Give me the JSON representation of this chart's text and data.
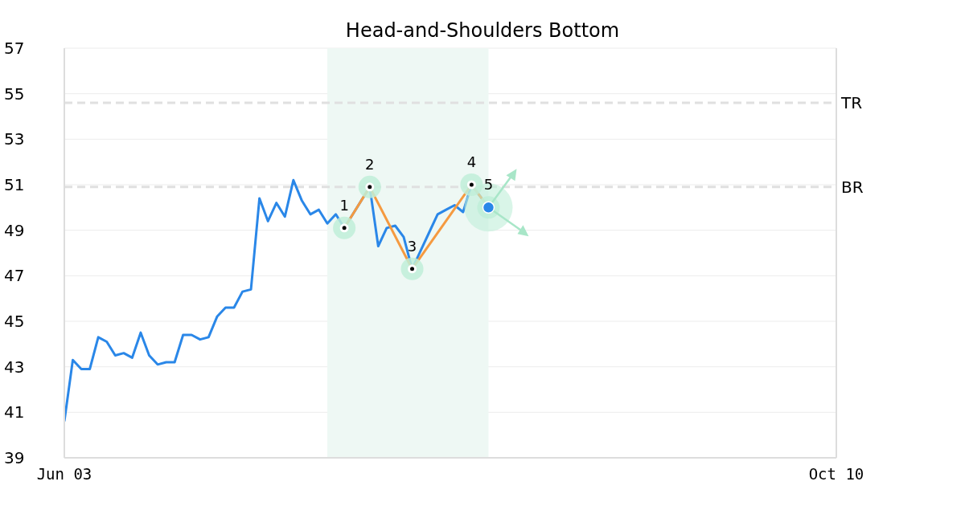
{
  "chart_data": {
    "type": "line",
    "title": "Head-and-Shoulders Bottom",
    "categories": [
      "Jun 03",
      null,
      null,
      null,
      null,
      null,
      null,
      null,
      null,
      null,
      null,
      null,
      null,
      null,
      null,
      null,
      null,
      null,
      null,
      null,
      null,
      null,
      null,
      null,
      null,
      null,
      null,
      null,
      null,
      null,
      null,
      null,
      null,
      null,
      null,
      null,
      null,
      null,
      null,
      null,
      null,
      null,
      null,
      null,
      null,
      null,
      null,
      null,
      null,
      null,
      null,
      null,
      null,
      null,
      null,
      null,
      null,
      null,
      null,
      null,
      null,
      null,
      null,
      null,
      null,
      null,
      null,
      null,
      null,
      null,
      null,
      null,
      null,
      null,
      null,
      null,
      null,
      null,
      null,
      null,
      null,
      null,
      null,
      null,
      null,
      null,
      null,
      null,
      null,
      null,
      null,
      "Oct 10"
    ],
    "series": [
      {
        "type": "line",
        "color": "#2a87e8",
        "values": [
          40.6,
          43.3,
          42.9,
          42.9,
          44.3,
          44.1,
          43.5,
          43.6,
          43.4,
          44.5,
          43.5,
          43.1,
          43.2,
          43.2,
          44.4,
          44.4,
          44.2,
          44.3,
          45.2,
          45.6,
          45.6,
          46.3,
          46.4,
          50.4,
          49.4,
          50.2,
          49.6,
          51.2,
          50.3,
          49.7,
          49.9,
          49.3,
          49.7,
          49.1,
          null,
          null,
          50.9,
          48.3,
          49.1,
          49.2,
          48.7,
          47.3,
          48.1,
          48.9,
          49.7,
          49.9,
          50.1,
          49.8,
          51.0,
          null,
          50.0,
          null,
          null,
          null,
          null,
          null,
          null,
          null,
          null,
          null,
          null,
          null,
          null,
          null,
          null,
          null,
          null,
          null,
          null,
          null,
          null,
          null,
          null,
          null,
          null,
          null,
          null,
          null,
          null,
          null,
          null,
          null,
          null,
          null,
          null,
          null,
          null,
          null,
          null,
          null,
          null,
          null
        ]
      },
      {
        "type": "line",
        "color": "#f59a40",
        "marker": "circle",
        "values": [
          null,
          null,
          null,
          null,
          null,
          null,
          null,
          null,
          null,
          null,
          null,
          null,
          null,
          null,
          null,
          null,
          null,
          null,
          null,
          null,
          null,
          null,
          null,
          null,
          null,
          null,
          null,
          null,
          null,
          null,
          null,
          null,
          null,
          49.1,
          null,
          null,
          50.9,
          null,
          null,
          null,
          null,
          47.3,
          null,
          null,
          null,
          null,
          null,
          null,
          51.0,
          null,
          50.0,
          null,
          null,
          null,
          null,
          null,
          null,
          null,
          null,
          null,
          null,
          null,
          null,
          null,
          null,
          null,
          null,
          null,
          null,
          null,
          null,
          null,
          null,
          null,
          null,
          null,
          null,
          null,
          null,
          null,
          null,
          null,
          null,
          null,
          null,
          null,
          null,
          null,
          null,
          null,
          null,
          null
        ],
        "colors": [
          null,
          null,
          null,
          null,
          null,
          null,
          null,
          null,
          null,
          null,
          null,
          null,
          null,
          null,
          null,
          null,
          null,
          null,
          null,
          null,
          null,
          null,
          null,
          null,
          null,
          null,
          null,
          null,
          null,
          null,
          null,
          null,
          null,
          "#000000",
          null,
          null,
          "#000000",
          null,
          null,
          null,
          null,
          "#000000",
          null,
          null,
          null,
          null,
          null,
          null,
          "#000000",
          null,
          "#2a87e8",
          null,
          null,
          null,
          null,
          null,
          null,
          null,
          null,
          null,
          null,
          null,
          null,
          null,
          null,
          null,
          null,
          null,
          null,
          null,
          null,
          null,
          null,
          null,
          null,
          null,
          null,
          null,
          null,
          null,
          null,
          null,
          null,
          null,
          null,
          null,
          null,
          null,
          null,
          null,
          null,
          null
        ]
      }
    ],
    "annotations": [
      "1",
      "2",
      "3",
      "4",
      "5"
    ],
    "ylim": [
      39,
      57
    ],
    "yticks": [
      39,
      41,
      43,
      45,
      47,
      49,
      51,
      53,
      55,
      57
    ],
    "grid": "y",
    "ref_lines": [
      {
        "axis": "y",
        "value": 54.6,
        "label": "TR",
        "color": "#e0e0e0",
        "line_style": "dashed"
      },
      {
        "axis": "y",
        "value": 50.9,
        "label": "BR",
        "color": "#e0e0e0",
        "line_style": "dashed"
      }
    ]
  }
}
